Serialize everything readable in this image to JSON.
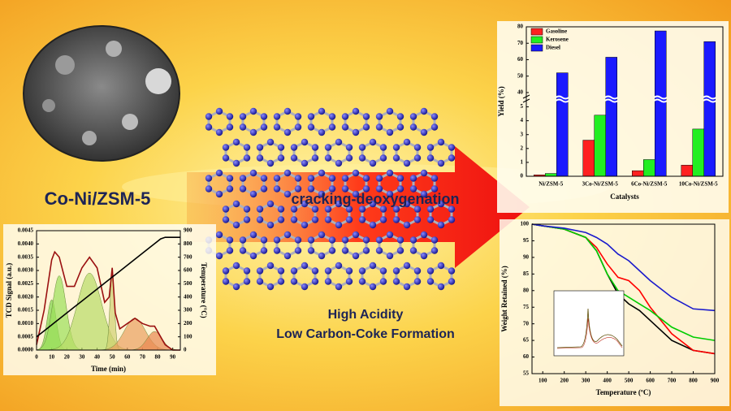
{
  "material_label": "Co-Ni/ZSM-5",
  "process_label": "cracking-deoxygenation",
  "highlights": [
    "High Acidity",
    "Low Carbon-Coke Formation"
  ],
  "chart_data": [
    {
      "type": "bar",
      "categories": [
        "Ni/ZSM-5",
        "3Co-Ni/ZSM-5",
        "6Co-Ni/ZSM-5",
        "10Co-Ni/ZSM-5"
      ],
      "series": [
        {
          "name": "Gasoline",
          "color": "#ff2020",
          "values": [
            0.1,
            2.6,
            0.4,
            0.8
          ]
        },
        {
          "name": "Kerosene",
          "color": "#22ee22",
          "values": [
            0.2,
            4.4,
            1.2,
            3.4
          ]
        },
        {
          "name": "Diesel",
          "color": "#1a1aff",
          "values": [
            52,
            61.5,
            77.5,
            71
          ]
        }
      ],
      "xlabel": "Catalysts",
      "ylabel": "Yield (%)",
      "ylim": [
        0,
        80
      ],
      "axis_break": [
        5.5,
        38
      ],
      "yticks": [
        0,
        1,
        2,
        3,
        4,
        5,
        40,
        50,
        60,
        70,
        80
      ],
      "legend": "upper left"
    },
    {
      "type": "line",
      "x": [
        0,
        5,
        10,
        12,
        15,
        20,
        25,
        30,
        35,
        40,
        45,
        48,
        50,
        52,
        55,
        60,
        65,
        70,
        75,
        78,
        82,
        85,
        90,
        95
      ],
      "series": [
        {
          "color": "#9a1010",
          "values": [
            0.0002,
            0.0015,
            0.0034,
            0.0037,
            0.0035,
            0.0024,
            0.0024,
            0.0031,
            0.0035,
            0.0031,
            0.0018,
            0.002,
            0.0031,
            0.0014,
            0.0008,
            0.001,
            0.0012,
            0.001,
            0.0009,
            0.0009,
            0.0005,
            0.0002,
            0,
            0
          ]
        },
        {
          "color": "#000000",
          "axis": "y2",
          "values": [
            100,
            145,
            190,
            208,
            235,
            280,
            325,
            370,
            415,
            460,
            505,
            532,
            550,
            568,
            595,
            640,
            685,
            730,
            775,
            802,
            838,
            850,
            850,
            850
          ]
        }
      ],
      "peaks": [
        {
          "center": 10,
          "height": 0.0019,
          "width": 3,
          "color": "#7fd44a"
        },
        {
          "center": 15,
          "height": 0.0028,
          "width": 4.5,
          "color": "#9be05a"
        },
        {
          "center": 35,
          "height": 0.0029,
          "width": 8,
          "color": "#b8dc66"
        },
        {
          "center": 50,
          "height": 0.0029,
          "width": 1.5,
          "color": "#d0d070"
        },
        {
          "center": 65,
          "height": 0.0012,
          "width": 7,
          "color": "#eaa060"
        },
        {
          "center": 78,
          "height": 0.0007,
          "width": 5,
          "color": "#e88850"
        }
      ],
      "xlabel": "Time (min)",
      "ylabel": "TCD Signal (a.u.)",
      "y2label": "Temperature (°C)",
      "xlim": [
        0,
        95
      ],
      "xticks": [
        0,
        10,
        20,
        30,
        40,
        50,
        60,
        70,
        80,
        90
      ],
      "ylim": [
        0,
        0.0045
      ],
      "yticks": [
        {
          "value": 0,
          "label": "0.0000"
        },
        0.0005,
        {
          "value": 0.001,
          "label": "0.0010"
        },
        0.0015,
        {
          "value": 0.002,
          "label": "0.0020"
        },
        0.0025,
        {
          "value": 0.003,
          "label": "0.0030"
        },
        0.0035,
        {
          "value": 0.004,
          "label": "0.0040"
        },
        0.0045
      ],
      "y2lim": [
        0,
        900
      ],
      "y2ticks": [
        0,
        100,
        200,
        300,
        400,
        500,
        600,
        700,
        800,
        900
      ]
    },
    {
      "type": "line",
      "x": [
        50,
        100,
        200,
        300,
        350,
        400,
        450,
        500,
        550,
        600,
        700,
        800,
        900
      ],
      "series": [
        {
          "color": "#000000",
          "values": [
            100,
            99.5,
            98.5,
            96,
            92,
            85,
            79,
            76,
            74,
            71,
            65,
            62,
            61
          ]
        },
        {
          "color": "#ff0000",
          "values": [
            100,
            99.5,
            98.5,
            96,
            93,
            88,
            84,
            83,
            80,
            75,
            67,
            62,
            61
          ]
        },
        {
          "color": "#00cc00",
          "values": [
            100,
            99.5,
            98.5,
            96,
            92,
            85,
            80,
            78,
            76,
            74,
            69,
            66,
            65
          ]
        },
        {
          "color": "#1a1acc",
          "values": [
            100,
            99.5,
            98.8,
            97.5,
            96,
            94,
            91,
            89,
            86,
            83,
            78,
            74.5,
            74
          ]
        }
      ],
      "xlabel": "Temperature (ºC)",
      "ylabel": "Weight Retained (%)",
      "xlim": [
        50,
        900
      ],
      "xticks": [
        100,
        200,
        300,
        400,
        500,
        600,
        700,
        800,
        900
      ],
      "ylim": [
        55,
        100
      ],
      "yticks": [
        55,
        60,
        65,
        70,
        75,
        80,
        85,
        90,
        95,
        100
      ]
    }
  ]
}
